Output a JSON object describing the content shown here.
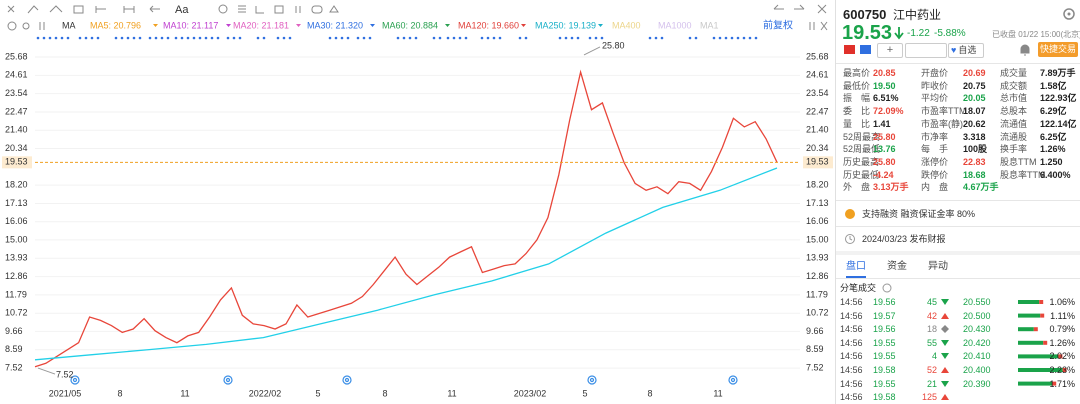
{
  "toolbar": {
    "font_button": "Aa",
    "adjust": "前复权",
    "ma_name": "MA",
    "ma_legend": [
      {
        "label": "MA5: 20.796",
        "color": "#f0a020"
      },
      {
        "label": "MA10: 21.117",
        "color": "#c040d0"
      },
      {
        "label": "MA20: 21.181",
        "color": "#e060c0"
      },
      {
        "label": "MA30: 21.320",
        "color": "#2f6fe0"
      },
      {
        "label": "MA60: 20.884",
        "color": "#2aa050"
      },
      {
        "label": "MA120: 19.660",
        "color": "#e0403a"
      },
      {
        "label": "MA250: 19.139",
        "color": "#1ab0c8"
      },
      {
        "label": "MA400",
        "color": "#ecd58a"
      },
      {
        "label": "MA1000",
        "color": "#d4c0ec"
      },
      {
        "label": "MA1",
        "color": "#c8c8c8"
      }
    ]
  },
  "price_chart": {
    "type": "line",
    "ylim": [
      6.94,
      26.38
    ],
    "grid": true,
    "yticks": [
      25.68,
      24.61,
      23.54,
      22.47,
      {
        "value": 21.4,
        "label": "21.40"
      },
      20.34,
      {
        "value": 18.2,
        "label": "18.20"
      },
      17.13,
      16.06,
      {
        "value": 15,
        "label": "15.00"
      },
      13.93,
      12.86,
      11.79,
      10.72,
      9.66,
      8.59,
      7.52
    ],
    "current": 19.53,
    "current_color": "#f0a020",
    "x_labels": [
      "2021/05",
      "8",
      "11",
      "2022/02",
      "5",
      "8",
      "11",
      "2023/02",
      "5",
      "8",
      "11"
    ],
    "high": {
      "value": 25.8,
      "label": "25.80"
    },
    "low": 7.52,
    "series": [
      {
        "color": "#e8463a",
        "values": [
          7.6,
          7.8,
          8.2,
          8.6,
          9.0,
          10.5,
          10.3,
          10.0,
          9.6,
          9.8,
          10.4,
          9.7,
          9.3,
          9.0,
          9.4,
          9.6,
          10.5,
          11.5,
          12.2,
          10.6,
          10.1,
          10.0,
          9.8,
          10.1,
          11.2,
          10.5,
          10.7,
          10.9,
          11.1,
          11.3,
          11.7,
          12.4,
          13.2,
          14.0,
          13.0,
          12.4,
          12.9,
          13.4,
          14.0,
          14.3,
          14.6,
          13.1,
          13.3,
          13.5,
          13.6,
          14.2,
          15.0,
          16.3,
          18.8,
          22.0,
          24.8,
          22.6,
          23.0,
          21.2,
          19.5,
          18.3,
          17.9,
          18.1,
          17.7,
          18.4,
          18.3,
          17.9,
          19.0,
          20.4,
          22.1,
          21.6,
          21.9,
          20.9,
          19.53
        ]
      },
      {
        "color": "#22d0e8",
        "values": [
          8.0,
          8.3,
          8.6,
          8.9,
          9.3,
          10.1,
          10.9,
          11.8,
          12.6,
          13.6,
          15.4,
          16.9,
          17.9,
          19.2
        ]
      }
    ]
  },
  "quote": {
    "code": "600750",
    "name": "江中药业",
    "price": "19.53",
    "change": "-1.22",
    "change_pct": "-5.88%",
    "status": "已收盘 01/22 15:00(北京)",
    "watch": "自选",
    "trade": "快捷交易"
  },
  "stats": [
    [
      {
        "label": "最高价",
        "value": "20.85",
        "color": "#e8463a"
      },
      {
        "label": "开盘价",
        "value": "20.69",
        "color": "#e8463a"
      },
      {
        "label": "成交量",
        "value": "7.89万手",
        "color": "#222"
      }
    ],
    [
      {
        "label": "最低价",
        "value": "19.50",
        "color": "#1aa34a"
      },
      {
        "label": "昨收价",
        "value": "20.75",
        "color": "#222"
      },
      {
        "label": "成交额",
        "value": "1.58亿",
        "color": "#222"
      }
    ],
    [
      {
        "label": "振　幅",
        "value": "6.51%",
        "color": "#222"
      },
      {
        "label": "平均价",
        "value": "20.05",
        "color": "#1aa34a"
      },
      {
        "label": "总市值",
        "value": "122.93亿",
        "color": "#222"
      }
    ],
    [
      {
        "label": "委　比",
        "value": "72.09%",
        "color": "#e8463a"
      },
      {
        "label": "市盈率TTM",
        "value": "18.07",
        "color": "#222"
      },
      {
        "label": "总股本",
        "value": "6.29亿",
        "color": "#222"
      }
    ],
    [
      {
        "label": "量　比",
        "value": "1.41",
        "color": "#222"
      },
      {
        "label": "市盈率(静)",
        "value": "20.62",
        "color": "#222"
      },
      {
        "label": "流通值",
        "value": "122.14亿",
        "color": "#222"
      }
    ],
    [
      {
        "label": "52周最高",
        "value": "25.80",
        "color": "#e8463a"
      },
      {
        "label": "市净率",
        "value": "3.318",
        "color": "#222"
      },
      {
        "label": "流通股",
        "value": "6.25亿",
        "color": "#222"
      }
    ],
    [
      {
        "label": "52周最低",
        "value": "13.76",
        "color": "#1aa34a"
      },
      {
        "label": "每　手",
        "value": "100股",
        "color": "#222"
      },
      {
        "label": "换手率",
        "value": "1.26%",
        "color": "#222"
      }
    ],
    [
      {
        "label": "历史最高",
        "value": "25.80",
        "color": "#e8463a"
      },
      {
        "label": "涨停价",
        "value": "22.83",
        "color": "#e8463a"
      },
      {
        "label": "股息TTM",
        "value": "1.250",
        "color": "#222"
      }
    ],
    [
      {
        "label": "历史最低",
        "value": "-4.24",
        "color": "#e8463a"
      },
      {
        "label": "跌停价",
        "value": "18.68",
        "color": "#1aa34a"
      },
      {
        "label": "股息率TTM",
        "value": "6.400%",
        "color": "#222"
      }
    ],
    [
      {
        "label": "外　盘",
        "value": "3.13万手",
        "color": "#e8463a"
      },
      {
        "label": "内　盘",
        "value": "4.67万手",
        "color": "#1aa34a"
      }
    ]
  ],
  "notices": {
    "margin": "支持融资 融资保证金率 80%",
    "report": "2024/03/23  发布财报"
  },
  "tabs": [
    "盘口",
    "资金",
    "异动"
  ],
  "trades": {
    "title": "分笔成交",
    "rows": [
      {
        "time": "14:56",
        "price": 19.56,
        "volume": 45,
        "dir": "down"
      },
      {
        "time": "14:56",
        "price": 19.57,
        "volume": 42,
        "dir": "up"
      },
      {
        "time": "14:56",
        "price": 19.56,
        "volume": 18,
        "dir": "flat"
      },
      {
        "time": "14:56",
        "price": 19.55,
        "volume": 55,
        "dir": "down"
      },
      {
        "time": "14:56",
        "price": 19.55,
        "volume": 4,
        "dir": "down"
      },
      {
        "time": "14:56",
        "price": 19.58,
        "volume": 52,
        "dir": "up"
      },
      {
        "time": "14:56",
        "price": 19.55,
        "volume": 21,
        "dir": "down"
      },
      {
        "time": "14:56",
        "price": 19.58,
        "volume": 125,
        "dir": "up"
      }
    ]
  },
  "distribution": {
    "rows": [
      {
        "price": "20.550",
        "pct": 1.06,
        "pct_label": "1.06%"
      },
      {
        "price": "20.500",
        "pct": 1.11,
        "pct_label": "1.11%"
      },
      {
        "price": "20.430",
        "pct": 0.79,
        "pct_label": "0.79%"
      },
      {
        "price": "20.420",
        "pct": 1.26,
        "pct_label": "1.26%"
      },
      {
        "price": "20.410",
        "pct": 2.02,
        "pct_label": "2.02%"
      },
      {
        "price": "20.400",
        "pct": 2.23,
        "pct_label": "2.23%"
      },
      {
        "price": "20.390",
        "pct": 1.71,
        "pct_label": "1.71%"
      }
    ]
  }
}
